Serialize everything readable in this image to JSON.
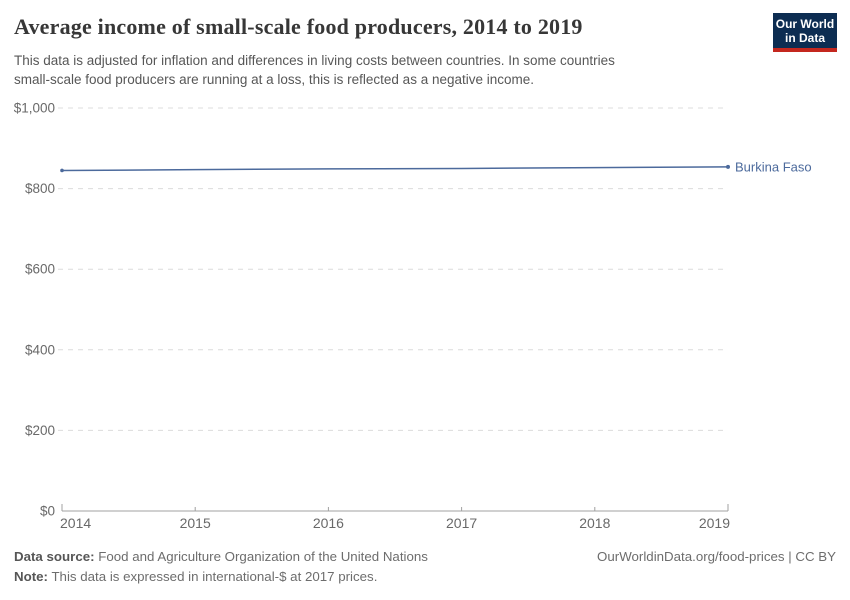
{
  "header": {
    "title": "Average income of small-scale food producers, 2014 to 2019",
    "subtitle_lines": [
      "This data is adjusted for inflation and differences in living costs between countries. In some countries",
      "small-scale food producers are running at a loss, this is reflected as a negative income."
    ],
    "logo": {
      "line1": "Our World",
      "line2": "in Data",
      "bg_color": "#0d2d52",
      "stripe_color": "#c4271e"
    }
  },
  "chart_data": {
    "type": "line",
    "title": "Average income of small-scale food producers, 2014 to 2019",
    "x": [
      2014,
      2015,
      2016,
      2017,
      2018,
      2019
    ],
    "x_tick_labels": [
      "2014",
      "2015",
      "2016",
      "2017",
      "2018",
      "2019"
    ],
    "y_ticks": [
      0,
      200,
      400,
      600,
      800,
      1000
    ],
    "y_tick_labels": [
      "$0",
      "$200",
      "$400",
      "$600",
      "$800",
      "$1,000"
    ],
    "ylim": [
      0,
      1000
    ],
    "grid": "horizontal-dashed",
    "legend_position": "right-of-line-end",
    "series": [
      {
        "name": "Burkina Faso",
        "color": "#4C6A9C",
        "values": [
          845,
          847,
          849,
          850,
          852,
          854
        ]
      }
    ]
  },
  "footer": {
    "source_label": "Data source:",
    "source_text": " Food and Agriculture Organization of the United Nations",
    "note_label": "Note:",
    "note_text": " This data is expressed in international-$ at 2017 prices.",
    "attribution": "OurWorldinData.org/food-prices | CC BY"
  }
}
